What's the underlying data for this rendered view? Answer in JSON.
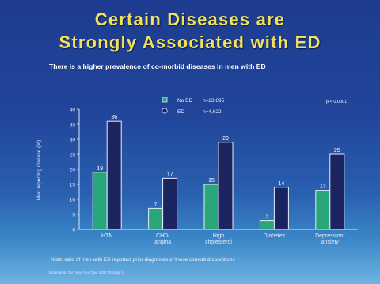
{
  "slide": {
    "title_line1": "Certain Diseases are",
    "title_line2": "Strongly Associated with ED",
    "subtitle": "There is a higher prevalence of co-morbid diseases in men with ED",
    "p_value": "p < 0.0001",
    "note": "Note: ratio of men with ED reported prior diagnoses of these comorbid conditions",
    "source": "Braun et al. Curr Med Res Opin 2004;20:suppl 1"
  },
  "colors": {
    "no_ed": "#2aa77a",
    "ed": "#1b245f"
  },
  "chart_data": {
    "type": "bar",
    "categories": [
      "HTN",
      "CHD/\nangina",
      "High\ncholesterol",
      "Diabetes",
      "Depression/\nanxiety"
    ],
    "series": [
      {
        "name": "No ED",
        "n": "n=23,895",
        "values": [
          19,
          7,
          15,
          3,
          13
        ]
      },
      {
        "name": "ED",
        "n": "n=4,622",
        "values": [
          36,
          17,
          29,
          14,
          25
        ]
      }
    ],
    "ylabel": "Men reporting disease (%)",
    "ylim": [
      0,
      40
    ],
    "yticks": [
      0,
      5,
      10,
      15,
      20,
      25,
      30,
      35,
      40
    ]
  }
}
